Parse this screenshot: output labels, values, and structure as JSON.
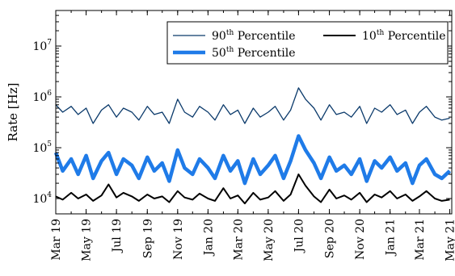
{
  "chart_data": {
    "type": "line",
    "ylabel": "Rate [Hz]",
    "yscale": "log",
    "ylim": [
      5000,
      50000000
    ],
    "y_ticks": [
      {
        "value": 10000,
        "base": "10",
        "exp": "4"
      },
      {
        "value": 100000,
        "base": "10",
        "exp": "5"
      },
      {
        "value": 1000000,
        "base": "10",
        "exp": "6"
      },
      {
        "value": 10000000,
        "base": "10",
        "exp": "7"
      }
    ],
    "xlim": [
      "2019-03-01",
      "2021-05-05"
    ],
    "x_ticks": [
      {
        "date": "2019-03-01",
        "label": "Mar 19"
      },
      {
        "date": "2019-05-01",
        "label": "May 19"
      },
      {
        "date": "2019-07-01",
        "label": "Jul 19"
      },
      {
        "date": "2019-09-01",
        "label": "Sep 19"
      },
      {
        "date": "2019-11-01",
        "label": "Nov 19"
      },
      {
        "date": "2020-01-01",
        "label": "Jan 20"
      },
      {
        "date": "2020-03-01",
        "label": "Mar 20"
      },
      {
        "date": "2020-05-01",
        "label": "May 20"
      },
      {
        "date": "2020-07-01",
        "label": "Jul 20"
      },
      {
        "date": "2020-09-01",
        "label": "Sep 20"
      },
      {
        "date": "2020-11-01",
        "label": "Nov 20"
      },
      {
        "date": "2021-01-01",
        "label": "Jan 21"
      },
      {
        "date": "2021-03-01",
        "label": "Mar 21"
      },
      {
        "date": "2021-05-01",
        "label": "May 21"
      }
    ],
    "legend_position": "top-right",
    "series": [
      {
        "name_base": "90",
        "name_sup": "th",
        "name_rest": " Percentile",
        "color": "#0b3a6b",
        "line_width": "thin",
        "x": [
          "2019-03-01",
          "2019-03-15",
          "2019-04-01",
          "2019-04-15",
          "2019-05-01",
          "2019-05-15",
          "2019-06-01",
          "2019-06-15",
          "2019-07-01",
          "2019-07-15",
          "2019-08-01",
          "2019-08-15",
          "2019-09-01",
          "2019-09-15",
          "2019-10-01",
          "2019-10-15",
          "2019-11-01",
          "2019-11-15",
          "2019-12-01",
          "2019-12-15",
          "2020-01-01",
          "2020-01-15",
          "2020-02-01",
          "2020-02-15",
          "2020-03-01",
          "2020-03-15",
          "2020-04-01",
          "2020-04-15",
          "2020-05-01",
          "2020-05-15",
          "2020-06-01",
          "2020-06-15",
          "2020-07-01",
          "2020-07-15",
          "2020-08-01",
          "2020-08-15",
          "2020-09-01",
          "2020-09-15",
          "2020-10-01",
          "2020-10-15",
          "2020-11-01",
          "2020-11-15",
          "2020-12-01",
          "2020-12-15",
          "2021-01-01",
          "2021-01-15",
          "2021-02-01",
          "2021-02-15",
          "2021-03-01",
          "2021-03-15",
          "2021-04-01",
          "2021-04-15",
          "2021-05-01"
        ],
        "values": [
          700000,
          500000,
          650000,
          450000,
          600000,
          300000,
          550000,
          700000,
          400000,
          600000,
          500000,
          350000,
          650000,
          450000,
          500000,
          300000,
          900000,
          500000,
          400000,
          650000,
          500000,
          350000,
          700000,
          450000,
          550000,
          300000,
          600000,
          400000,
          500000,
          650000,
          350000,
          550000,
          1500000,
          900000,
          600000,
          350000,
          700000,
          450000,
          500000,
          400000,
          650000,
          300000,
          600000,
          500000,
          700000,
          450000,
          550000,
          300000,
          500000,
          650000,
          400000,
          350000,
          380000
        ]
      },
      {
        "name_base": "50",
        "name_sup": "th",
        "name_rest": " Percentile",
        "color": "#1f7be8",
        "line_width": "thick",
        "x": [
          "2019-03-01",
          "2019-03-15",
          "2019-04-01",
          "2019-04-15",
          "2019-05-01",
          "2019-05-15",
          "2019-06-01",
          "2019-06-15",
          "2019-07-01",
          "2019-07-15",
          "2019-08-01",
          "2019-08-15",
          "2019-09-01",
          "2019-09-15",
          "2019-10-01",
          "2019-10-15",
          "2019-11-01",
          "2019-11-15",
          "2019-12-01",
          "2019-12-15",
          "2020-01-01",
          "2020-01-15",
          "2020-02-01",
          "2020-02-15",
          "2020-03-01",
          "2020-03-15",
          "2020-04-01",
          "2020-04-15",
          "2020-05-01",
          "2020-05-15",
          "2020-06-01",
          "2020-06-15",
          "2020-07-01",
          "2020-07-15",
          "2020-08-01",
          "2020-08-15",
          "2020-09-01",
          "2020-09-15",
          "2020-10-01",
          "2020-10-15",
          "2020-11-01",
          "2020-11-15",
          "2020-12-01",
          "2020-12-15",
          "2021-01-01",
          "2021-01-15",
          "2021-02-01",
          "2021-02-15",
          "2021-03-01",
          "2021-03-15",
          "2021-04-01",
          "2021-04-15",
          "2021-05-01"
        ],
        "values": [
          80000,
          35000,
          60000,
          30000,
          70000,
          25000,
          55000,
          80000,
          30000,
          60000,
          45000,
          25000,
          65000,
          35000,
          50000,
          22000,
          90000,
          40000,
          30000,
          60000,
          40000,
          25000,
          70000,
          35000,
          55000,
          20000,
          60000,
          30000,
          45000,
          70000,
          25000,
          55000,
          170000,
          90000,
          50000,
          25000,
          65000,
          35000,
          45000,
          30000,
          60000,
          22000,
          55000,
          40000,
          65000,
          35000,
          50000,
          20000,
          45000,
          60000,
          30000,
          25000,
          35000
        ]
      },
      {
        "name_base": "10",
        "name_sup": "th",
        "name_rest": " Percentile",
        "color": "#000000",
        "line_width": "medium",
        "x": [
          "2019-03-01",
          "2019-03-15",
          "2019-04-01",
          "2019-04-15",
          "2019-05-01",
          "2019-05-15",
          "2019-06-01",
          "2019-06-15",
          "2019-07-01",
          "2019-07-15",
          "2019-08-01",
          "2019-08-15",
          "2019-09-01",
          "2019-09-15",
          "2019-10-01",
          "2019-10-15",
          "2019-11-01",
          "2019-11-15",
          "2019-12-01",
          "2019-12-15",
          "2020-01-01",
          "2020-01-15",
          "2020-02-01",
          "2020-02-15",
          "2020-03-01",
          "2020-03-15",
          "2020-04-01",
          "2020-04-15",
          "2020-05-01",
          "2020-05-15",
          "2020-06-01",
          "2020-06-15",
          "2020-07-01",
          "2020-07-15",
          "2020-08-01",
          "2020-08-15",
          "2020-09-01",
          "2020-09-15",
          "2020-10-01",
          "2020-10-15",
          "2020-11-01",
          "2020-11-15",
          "2020-12-01",
          "2020-12-15",
          "2021-01-01",
          "2021-01-15",
          "2021-02-01",
          "2021-02-15",
          "2021-03-01",
          "2021-03-15",
          "2021-04-01",
          "2021-04-15",
          "2021-05-01"
        ],
        "values": [
          11000,
          9500,
          13000,
          10000,
          12000,
          9000,
          11500,
          19000,
          10500,
          13000,
          11000,
          9000,
          12000,
          10000,
          11000,
          8500,
          14000,
          10500,
          9500,
          12500,
          10000,
          9000,
          16000,
          10000,
          11500,
          8000,
          13000,
          9500,
          10500,
          14000,
          9000,
          12000,
          30000,
          18000,
          11000,
          8500,
          15000,
          10000,
          11500,
          9500,
          13000,
          8500,
          12000,
          10500,
          14000,
          10000,
          12000,
          9000,
          11000,
          14000,
          10000,
          9000,
          9500
        ]
      }
    ]
  }
}
